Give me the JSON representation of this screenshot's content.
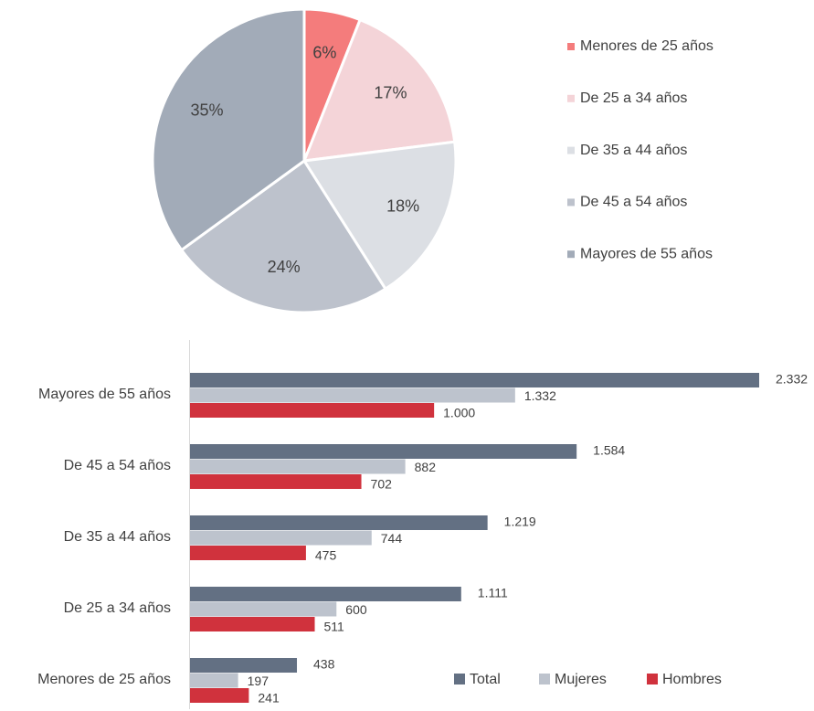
{
  "chart_data": [
    {
      "type": "pie",
      "categories": [
        "Menores de 25 años",
        "De 25 a 34 años",
        "De 35 a 44 años",
        "De 45 a 54 años",
        "Mayores de 55 años"
      ],
      "values": [
        6,
        17,
        18,
        24,
        35
      ],
      "value_labels": [
        "6%",
        "17%",
        "18%",
        "24%",
        "35%"
      ],
      "colors": [
        "#f47c7c",
        "#f4d4d8",
        "#dcdfe4",
        "#bdc2cc",
        "#a2abb8"
      ]
    },
    {
      "type": "hbar",
      "categories": [
        "Menores de 25 años",
        "De 25 a 34 años",
        "De 35 a 44 años",
        "De 45 a 54 años",
        "Mayores de 55 años"
      ],
      "series": [
        {
          "name": "Total",
          "color": "#637083",
          "values": [
            438,
            1111,
            1219,
            1584,
            2332
          ],
          "value_labels": [
            "438",
            "1.111",
            "1.219",
            "1.584",
            "2.332"
          ]
        },
        {
          "name": "Mujeres",
          "color": "#bdc3cd",
          "values": [
            197,
            600,
            744,
            882,
            1332
          ],
          "value_labels": [
            "197",
            "600",
            "744",
            "882",
            "1.332"
          ]
        },
        {
          "name": "Hombres",
          "color": "#d0323d",
          "values": [
            241,
            511,
            475,
            702,
            1000
          ],
          "value_labels": [
            "241",
            "511",
            "475",
            "702",
            "1.000"
          ]
        }
      ]
    }
  ]
}
